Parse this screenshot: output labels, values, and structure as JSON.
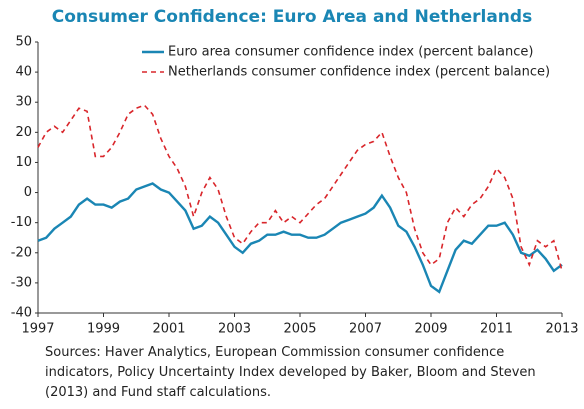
{
  "chart_data": {
    "type": "line",
    "title": "Consumer Confidence: Euro Area and Netherlands",
    "source": "Sources: Haver Analytics, European Commission consumer confidence indicators, Policy Uncertainty Index developed by Baker, Bloom and Steven (2013) and Fund staff calculations.",
    "x": [
      1997,
      1997.25,
      1997.5,
      1997.75,
      1998,
      1998.25,
      1998.5,
      1998.75,
      1999,
      1999.25,
      1999.5,
      1999.75,
      2000,
      2000.25,
      2000.5,
      2000.75,
      2001,
      2001.25,
      2001.5,
      2001.75,
      2002,
      2002.25,
      2002.5,
      2002.75,
      2003,
      2003.25,
      2003.5,
      2003.75,
      2004,
      2004.25,
      2004.5,
      2004.75,
      2005,
      2005.25,
      2005.5,
      2005.75,
      2006,
      2006.25,
      2006.5,
      2006.75,
      2007,
      2007.25,
      2007.5,
      2007.75,
      2008,
      2008.25,
      2008.5,
      2008.75,
      2009,
      2009.25,
      2009.5,
      2009.75,
      2010,
      2010.25,
      2010.5,
      2010.75,
      2011,
      2011.25,
      2011.5,
      2011.75,
      2012,
      2012.25,
      2012.5,
      2012.75,
      2013
    ],
    "series": [
      {
        "name": "Euro area consumer confidence index (percent balance)",
        "color": "#1a86b4",
        "dashed": false,
        "values": [
          -16,
          -15,
          -12,
          -10,
          -8,
          -4,
          -2,
          -4,
          -4,
          -5,
          -3,
          -2,
          1,
          2,
          3,
          1,
          0,
          -3,
          -6,
          -12,
          -11,
          -8,
          -10,
          -14,
          -18,
          -20,
          -17,
          -16,
          -14,
          -14,
          -13,
          -14,
          -14,
          -15,
          -15,
          -14,
          -12,
          -10,
          -9,
          -8,
          -7,
          -5,
          -1,
          -5,
          -11,
          -13,
          -18,
          -24,
          -31,
          -33,
          -26,
          -19,
          -16,
          -17,
          -14,
          -11,
          -11,
          -10,
          -14,
          -20,
          -21,
          -19,
          -22,
          -26,
          -24
        ]
      },
      {
        "name": "Netherlands consumer confidence index (percent balance)",
        "color": "#d9262b",
        "dashed": true,
        "values": [
          15,
          20,
          22,
          20,
          24,
          28,
          27,
          12,
          12,
          15,
          20,
          26,
          28,
          29,
          26,
          18,
          12,
          8,
          2,
          -8,
          0,
          5,
          1,
          -8,
          -15,
          -17,
          -13,
          -10,
          -10,
          -6,
          -10,
          -8,
          -10,
          -7,
          -4,
          -2,
          2,
          6,
          10,
          14,
          16,
          17,
          20,
          12,
          5,
          0,
          -12,
          -20,
          -24,
          -22,
          -10,
          -5,
          -8,
          -4,
          -2,
          2,
          8,
          5,
          -2,
          -18,
          -24,
          -16,
          -18,
          -16,
          -26
        ]
      }
    ],
    "xlim": [
      1997,
      2013
    ],
    "xticks": [
      1997,
      1999,
      2001,
      2003,
      2005,
      2007,
      2009,
      2011,
      2013
    ],
    "ylim": [
      -40,
      50
    ],
    "yticks": [
      -40,
      -30,
      -20,
      -10,
      0,
      10,
      20,
      30,
      40,
      50
    ],
    "grid": false,
    "legend": "upper right"
  }
}
